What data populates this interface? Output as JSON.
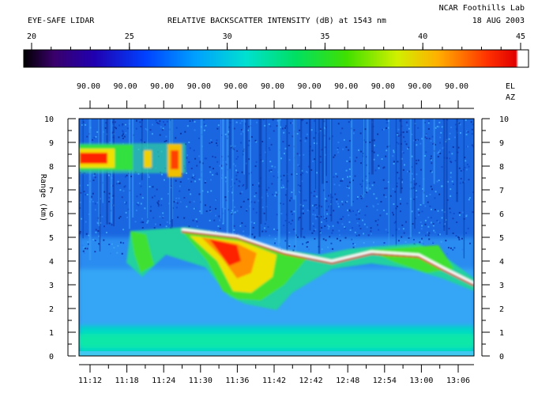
{
  "header": {
    "left": "EYE-SAFE LIDAR",
    "center": "RELATIVE BACKSCATTER INTENSITY (dB) at 1543 nm",
    "lab": "NCAR Foothills Lab",
    "date": "18 AUG 2003"
  },
  "chart_data": {
    "type": "heatmap",
    "title": "RELATIVE BACKSCATTER INTENSITY (dB) at 1543 nm",
    "ylabel": "Range (km)",
    "ylim": [
      0,
      10
    ],
    "y_ticks": [
      "0",
      "1",
      "2",
      "3",
      "4",
      "5",
      "6",
      "7",
      "8",
      "9",
      "10"
    ],
    "x_ticks": [
      "11:12",
      "11:18",
      "11:24",
      "11:30",
      "11:36",
      "11:42",
      "12:42",
      "12:48",
      "12:54",
      "13:00",
      "13:06"
    ],
    "elevation_labels": [
      "90.00",
      "90.00",
      "90.00",
      "90.00",
      "90.00",
      "90.00",
      "90.00",
      "90.00",
      "90.00",
      "90.00",
      "90.00"
    ],
    "el_label": "EL",
    "az_label": "AZ",
    "colorbar": {
      "range": [
        20,
        45
      ],
      "ticks": [
        "20",
        "25",
        "30",
        "35",
        "40",
        "45"
      ]
    },
    "features": [
      {
        "kind": "aerosol layer",
        "range_km": [
          0.2,
          1.1
        ],
        "intensity_db": 30
      },
      {
        "kind": "elevated layer",
        "range_km": [
          7.5,
          8.7
        ],
        "intensity_db": 41
      },
      {
        "kind": "cloud",
        "range_km": [
          2.2,
          5.3
        ],
        "intensity_db": 38
      }
    ]
  }
}
